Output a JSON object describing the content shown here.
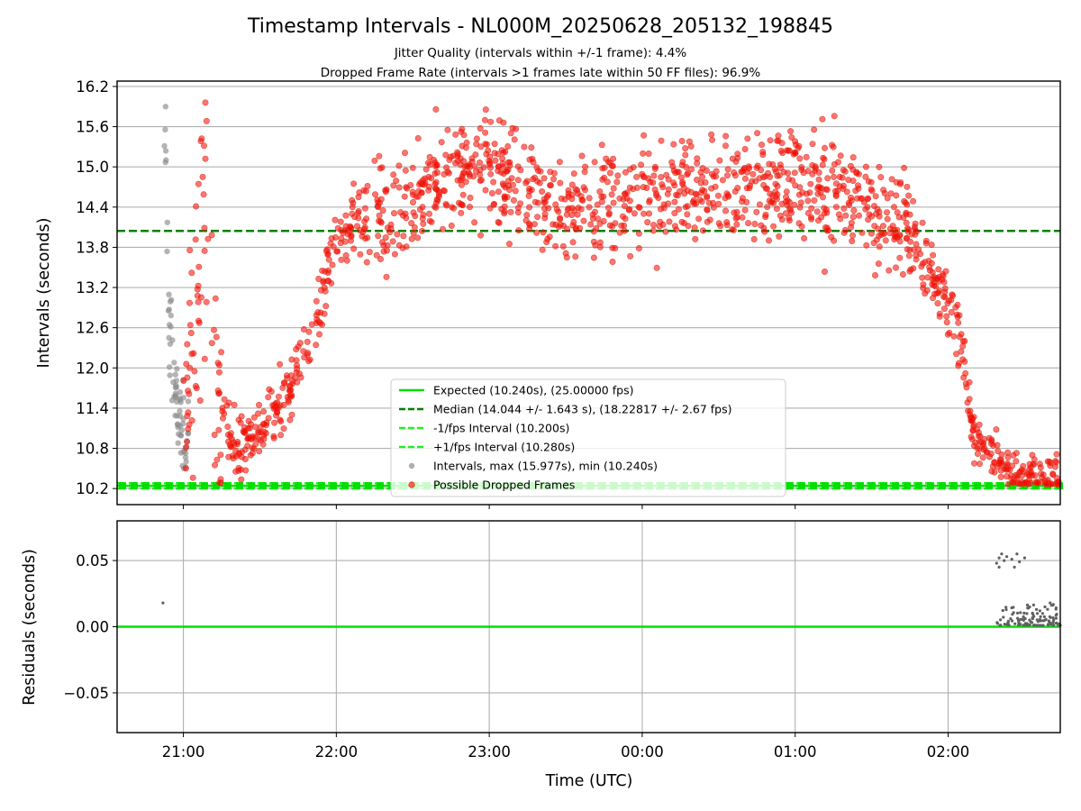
{
  "chart_data": [
    {
      "type": "scatter",
      "title": "Timestamp Intervals - NL000M_20250628_205132_198845",
      "subtitle_lines": [
        "Jitter Quality (intervals within +/-1 frame): 4.4%",
        "Dropped Frame Rate (intervals >1 frames late within 50 FF files): 96.9%"
      ],
      "ylabel": "Intervals (seconds)",
      "xlim": [
        "20:34",
        "02:44"
      ],
      "ylim": [
        9.96,
        16.28
      ],
      "yticks": [
        "10.2",
        "10.8",
        "11.4",
        "12.0",
        "12.6",
        "13.2",
        "13.8",
        "14.4",
        "15.0",
        "15.6",
        "16.2"
      ],
      "ytick_values": [
        10.2,
        10.8,
        11.4,
        12.0,
        12.6,
        13.2,
        13.8,
        14.4,
        15.0,
        15.6,
        16.2
      ],
      "grid": true,
      "legend_position": "lower-center",
      "legend": [
        "Expected (10.240s), (25.00000 fps)",
        "Median (14.044 +/- 1.643 s), (18.22817 +/- 2.67 fps)",
        "-1/fps Interval (10.200s)",
        "+1/fps Interval (10.280s)",
        "Intervals, max (15.977s), min (10.240s)",
        "Possible Dropped Frames"
      ],
      "lines": [
        {
          "name": "Expected",
          "y": 10.24
        },
        {
          "name": "Median",
          "y": 14.044
        },
        {
          "name": "-1/fps Interval",
          "y": 10.2
        },
        {
          "name": "+1/fps Interval",
          "y": 10.28
        }
      ],
      "series_profiles": [
        {
          "name": "Intervals",
          "x": [
            "20:52",
            "20:53",
            "20:54",
            "20:55",
            "20:56",
            "20:57",
            "20:58",
            "20:59",
            "21:00",
            "21:02"
          ],
          "y": [
            13.6,
            15.65,
            12.85,
            12.3,
            11.9,
            11.5,
            11.2,
            11.15,
            11.1,
            11.0
          ]
        },
        {
          "name": "Possible Dropped Frames",
          "x": [
            "21:00",
            "21:05",
            "21:08",
            "21:12",
            "21:20",
            "21:30",
            "21:40",
            "21:50",
            "22:00",
            "22:15",
            "22:30",
            "22:45",
            "23:00",
            "23:30",
            "00:00",
            "00:30",
            "01:00",
            "01:30",
            "01:45",
            "01:55",
            "02:05",
            "02:10",
            "02:20",
            "02:30",
            "02:44"
          ],
          "y": [
            11.3,
            12.9,
            14.3,
            11.6,
            10.8,
            11.1,
            11.5,
            12.5,
            13.9,
            14.3,
            14.5,
            14.9,
            15.0,
            14.3,
            14.6,
            14.7,
            14.8,
            14.4,
            14.0,
            13.3,
            12.5,
            11.0,
            10.6,
            10.35,
            10.3
          ]
        }
      ]
    },
    {
      "type": "scatter",
      "ylabel": "Residuals (seconds)",
      "xlabel": "Time (UTC)",
      "xticks": [
        "21:00",
        "22:00",
        "23:00",
        "00:00",
        "01:00",
        "02:00"
      ],
      "ylim": [
        -0.08,
        0.08
      ],
      "yticks": [
        "0.05",
        "0.00",
        "−0.05"
      ],
      "ytick_values": [
        0.05,
        0.0,
        -0.05
      ],
      "grid": true,
      "lines": [
        {
          "name": "Expected",
          "y": 0.0
        }
      ],
      "points": {
        "x": [
          "20:52",
          "02:19",
          "02:20",
          "02:20",
          "02:21",
          "02:22",
          "02:23",
          "02:25",
          "02:26",
          "02:27",
          "02:28",
          "02:30",
          "02:32",
          "02:35",
          "02:36",
          "02:38",
          "02:40"
        ],
        "y": [
          0.018,
          0.048,
          0.052,
          0.045,
          0.055,
          0.05,
          0.053,
          0.051,
          0.045,
          0.055,
          0.049,
          0.052,
          0.015,
          0.01,
          0.012,
          0.015,
          0.018
        ]
      }
    }
  ],
  "colors": {
    "expected": "#00e000",
    "median": "#008000",
    "fps_bounds": "#22ee22",
    "intervals": "#8c8c8c",
    "dropped": "#ff0000",
    "dropped_edge": "#d23c1e",
    "residuals": "#606060",
    "grid": "#b0b0b0"
  }
}
